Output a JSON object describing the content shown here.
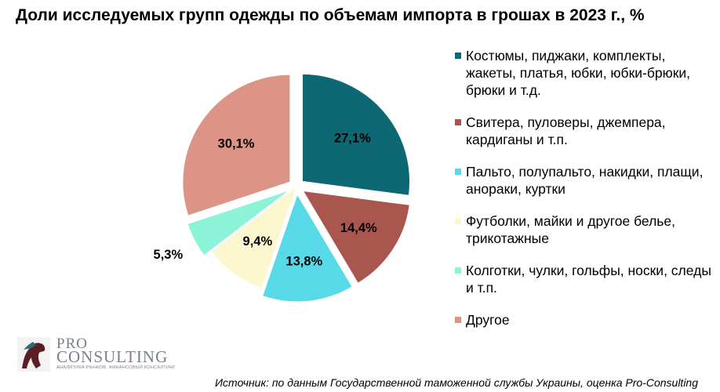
{
  "title": "Доли исследуемых групп одежды по объемам импорта в грошах в 2023 г., %",
  "chart_data": {
    "type": "pie",
    "title": "Доли исследуемых групп одежды по объемам импорта в грошах в 2023 г., %",
    "slices": [
      {
        "label": "Костюмы, пиджаки, комплекты, жакеты, платья, юбки, юбки-брюки, брюки и т.д.",
        "value": 27.1,
        "value_label": "27,1%",
        "color": "#0e6873",
        "exploded": true
      },
      {
        "label": "Свитера, пуловеры, джемпера, кардиганы и т.п.",
        "value": 14.4,
        "value_label": "14,4%",
        "color": "#a9564e",
        "exploded": true
      },
      {
        "label": "Пальто, полупальто, накидки, плащи, анораки, куртки",
        "value": 13.8,
        "value_label": "13,8%",
        "color": "#57d9e8",
        "exploded": true
      },
      {
        "label": "Футболки, майки и другое белье, трикотажные",
        "value": 9.4,
        "value_label": "9,4%",
        "color": "#fdf7d0",
        "exploded": false
      },
      {
        "label": "Колготки, чулки, гольфы, носки, следы и т.п.",
        "value": 5.3,
        "value_label": "5,3%",
        "color": "#8cf3d6",
        "exploded": true
      },
      {
        "label": "Другое",
        "value": 30.1,
        "value_label": "30,1%",
        "color": "#dc9486",
        "exploded": true
      }
    ],
    "legend_position": "right"
  },
  "source": "Источник: по данным Государственной таможенной службы Украины, оценка Pro-Consulting",
  "logo": {
    "pro": "PRO",
    "consulting": "CONSULTING",
    "tagline": "АНАЛИТИКА РЫНКОВ. ФИНАНСОВЫЙ КОНСАЛТИНГ"
  }
}
